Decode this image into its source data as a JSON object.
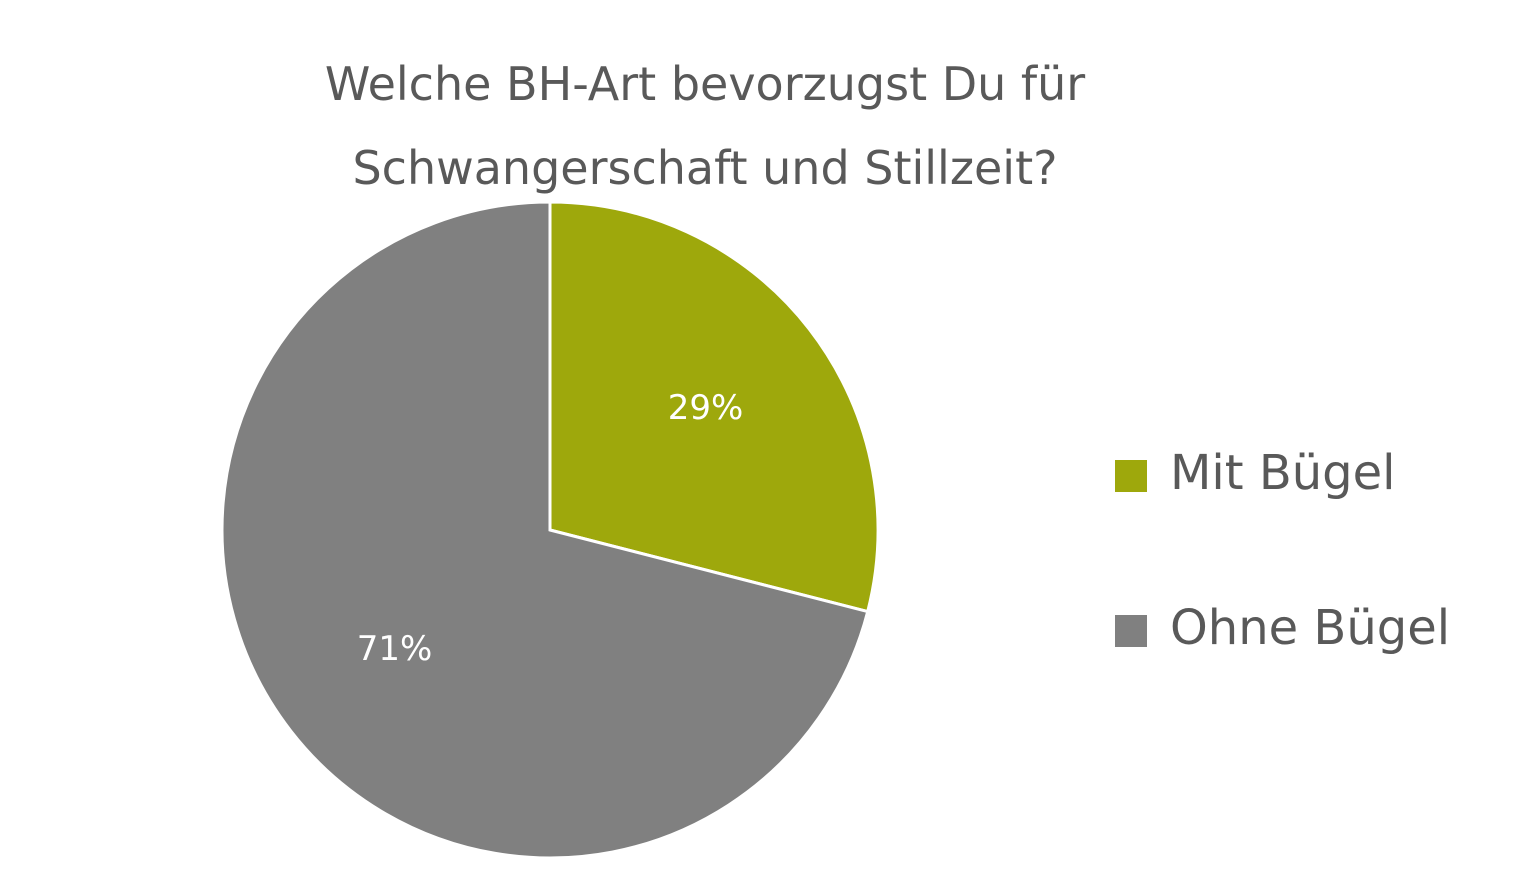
{
  "chart_data": {
    "type": "pie",
    "title": "Welche BH-Art bevorzugst Du für Schwangerschaft und Stillzeit?",
    "categories": [
      "Mit Bügel",
      "Ohne Bügel"
    ],
    "values": [
      29,
      71
    ],
    "value_labels": [
      "29%",
      "71%"
    ],
    "colors": [
      "#9ea80c",
      "#808080"
    ],
    "legend": "right"
  }
}
